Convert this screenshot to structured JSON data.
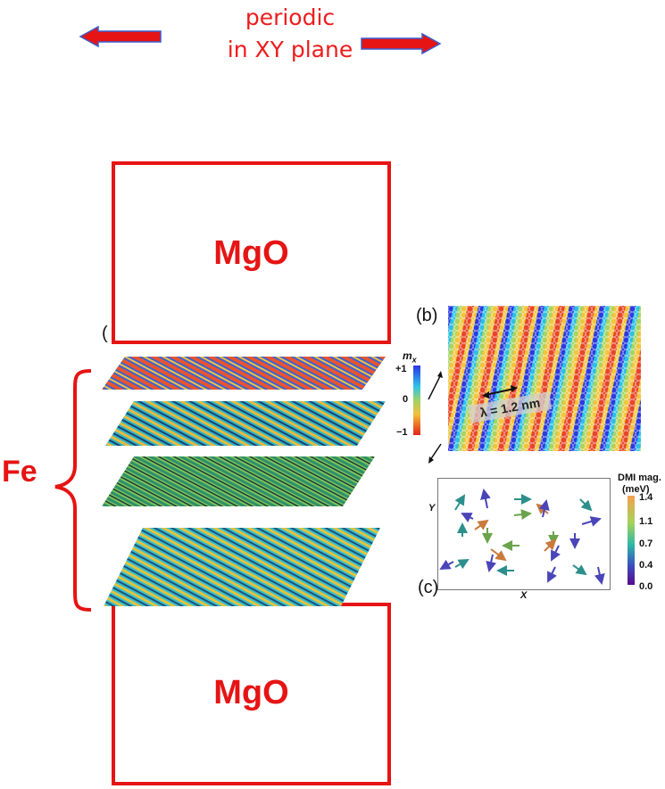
{
  "header": {
    "line1": "periodic",
    "line2": "in XY plane"
  },
  "mgo_top": {
    "label": "MgO"
  },
  "mgo_bottom": {
    "label": "MgO"
  },
  "fe_label": "Fe",
  "panel_a": {
    "paren": "(",
    "colorbar_title": "m",
    "colorbar_sub": "x",
    "tick_top": "+1",
    "tick_mid": "0",
    "tick_bottom": "−1"
  },
  "panel_b": {
    "label": "(b)",
    "wavelength": "λ = 1.2 nm"
  },
  "panel_c": {
    "label": "(c)",
    "xaxis": "X",
    "yaxis": "Y",
    "colorbar_title": "DMI mag.",
    "colorbar_unit": "(meV)",
    "ticks": [
      "1.4",
      "1.1",
      "0.7",
      "0.4",
      "0.0"
    ]
  },
  "colors": {
    "accent_red": "#e61414",
    "arrow_blue": "#3a5fd0"
  }
}
